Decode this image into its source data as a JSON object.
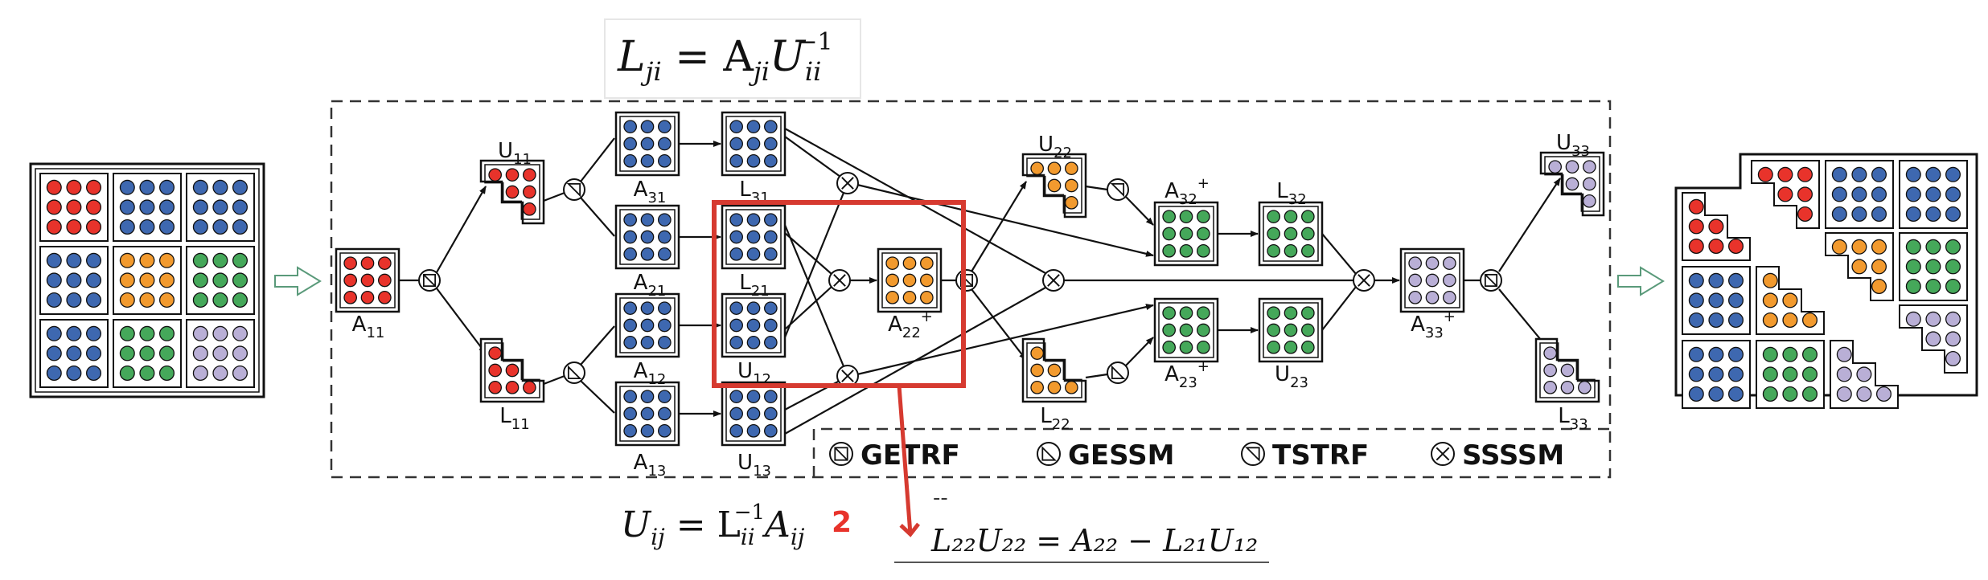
{
  "colors": {
    "red": "#e8332b",
    "blue": "#3e68b0",
    "orange": "#f29a2e",
    "green": "#45a85a",
    "purple": "#b9afd6",
    "highlight": "#d63a30",
    "ink": "#111111"
  },
  "equations": {
    "top": {
      "base": "L",
      "sub1": "ji",
      "mid": " = A",
      "sub2": "ji",
      "tail": "U",
      "sub3": "ii",
      "sup3": "−1"
    },
    "bottom_left": {
      "base": "U",
      "sub1": "ij",
      "mid": " = L",
      "sub2": "ii",
      "sup2": "−1",
      "tail": "A",
      "sub3": "ij"
    },
    "bottom_left_note": "2",
    "bottom_right": "L₂₂U₂₂ = A₂₂ − L₂₁U₁₂",
    "dash_mark": "--"
  },
  "blocks": {
    "A11": {
      "base": "A",
      "sub": "11",
      "sup": ""
    },
    "U11": {
      "base": "U",
      "sub": "11",
      "sup": ""
    },
    "L11": {
      "base": "L",
      "sub": "11",
      "sup": ""
    },
    "A31": {
      "base": "A",
      "sub": "31",
      "sup": ""
    },
    "A21": {
      "base": "A",
      "sub": "21",
      "sup": ""
    },
    "A12": {
      "base": "A",
      "sub": "12",
      "sup": ""
    },
    "A13": {
      "base": "A",
      "sub": "13",
      "sup": ""
    },
    "L31": {
      "base": "L",
      "sub": "31",
      "sup": ""
    },
    "L21": {
      "base": "L",
      "sub": "21",
      "sup": ""
    },
    "U12": {
      "base": "U",
      "sub": "12",
      "sup": ""
    },
    "U13": {
      "base": "U",
      "sub": "13",
      "sup": ""
    },
    "A22": {
      "base": "A",
      "sub": "22",
      "sup": "+"
    },
    "U22": {
      "base": "U",
      "sub": "22",
      "sup": ""
    },
    "L22": {
      "base": "L",
      "sub": "22",
      "sup": ""
    },
    "A32": {
      "base": "A",
      "sub": "32",
      "sup": "+"
    },
    "A23": {
      "base": "A",
      "sub": "23",
      "sup": "+"
    },
    "L32": {
      "base": "L",
      "sub": "32",
      "sup": ""
    },
    "U23": {
      "base": "U",
      "sub": "23",
      "sup": ""
    },
    "A33": {
      "base": "A",
      "sub": "33",
      "sup": "+"
    },
    "U33": {
      "base": "U",
      "sub": "33",
      "sup": ""
    },
    "L33": {
      "base": "L",
      "sub": "33",
      "sup": ""
    }
  },
  "legend": {
    "getrf": "GETRF",
    "gessm": "GESSM",
    "tstrf": "TSTRF",
    "ssssm": "SSSSM"
  }
}
